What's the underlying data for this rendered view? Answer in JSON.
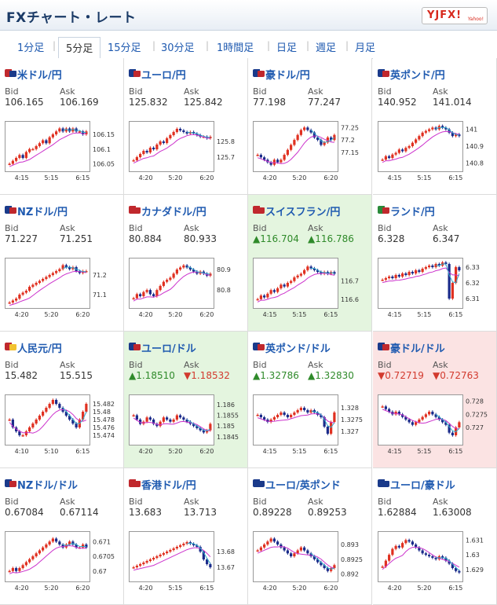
{
  "header": {
    "title": "FXチャート・レート",
    "logo_text": "YJFX!",
    "logo_sub": "Yahoo!"
  },
  "tabs": [
    "1分足",
    "5分足",
    "15分足",
    "30分足",
    "1時間足",
    "日足",
    "週足",
    "月足"
  ],
  "active_tab": 1,
  "labels": {
    "bid": "Bid",
    "ask": "Ask"
  },
  "colors": {
    "accent": "#1f5ab0",
    "up_candle": "#e03020",
    "down_candle": "#1a2a8a",
    "ma_line": "#cc33cc",
    "signal_line": "#33aacc",
    "up_text": "#2f8a2a",
    "down_text": "#d23a2e",
    "up_bg": "#e4f5df",
    "down_bg": "#fbe3e3"
  },
  "pairs": [
    {
      "name": "米ドル/円",
      "flag": [
        "#c0282d",
        "#1a3a8a"
      ],
      "bid": "106.165",
      "ask": "106.169",
      "trend": "",
      "bg": "",
      "chart": {
        "yticks": [
          "106.15",
          "106.1",
          "106.05"
        ],
        "xticks": [
          "4:15",
          "5:15",
          "6:15"
        ],
        "ylim": [
          106.03,
          106.19
        ],
        "closes": [
          106.05,
          106.06,
          106.07,
          106.08,
          106.07,
          106.09,
          106.1,
          106.1,
          106.11,
          106.12,
          106.13,
          106.12,
          106.14,
          106.15,
          106.16,
          106.17,
          106.16,
          106.17,
          106.16,
          106.17,
          106.16,
          106.16,
          106.15,
          106.16
        ]
      }
    },
    {
      "name": "ユーロ/円",
      "flag": [
        "#1a3a8a",
        "#c0282d"
      ],
      "bid": "125.832",
      "ask": "125.842",
      "trend": "",
      "bg": "",
      "chart": {
        "yticks": [
          "125.8",
          "125.7"
        ],
        "xticks": [
          "4:20",
          "5:20",
          "6:20"
        ],
        "ylim": [
          125.62,
          125.92
        ],
        "closes": [
          125.68,
          125.7,
          125.72,
          125.74,
          125.73,
          125.76,
          125.75,
          125.78,
          125.8,
          125.79,
          125.82,
          125.84,
          125.86,
          125.88,
          125.87,
          125.86,
          125.85,
          125.86,
          125.85,
          125.84,
          125.83,
          125.83,
          125.82,
          125.83
        ]
      }
    },
    {
      "name": "豪ドル/円",
      "flag": [
        "#1a3a8a",
        "#c0282d"
      ],
      "bid": "77.198",
      "ask": "77.247",
      "trend": "",
      "bg": "",
      "chart": {
        "yticks": [
          "77.25",
          "77.2",
          "77.15"
        ],
        "xticks": [
          "4:20",
          "5:20",
          "6:20"
        ],
        "ylim": [
          77.08,
          77.27
        ],
        "closes": [
          77.14,
          77.13,
          77.12,
          77.11,
          77.1,
          77.12,
          77.11,
          77.12,
          77.14,
          77.16,
          77.18,
          77.2,
          77.22,
          77.24,
          77.25,
          77.24,
          77.23,
          77.21,
          77.2,
          77.18,
          77.19,
          77.21,
          77.2,
          77.22
        ]
      }
    },
    {
      "name": "英ポンド/円",
      "flag": [
        "#1a3a8a",
        "#c0282d"
      ],
      "bid": "140.952",
      "ask": "141.014",
      "trend": "",
      "bg": "",
      "chart": {
        "yticks": [
          "141",
          "140.9",
          "140.8"
        ],
        "xticks": [
          "4:15",
          "5:15",
          "6:15"
        ],
        "ylim": [
          140.76,
          141.04
        ],
        "closes": [
          140.82,
          140.84,
          140.83,
          140.85,
          140.86,
          140.88,
          140.87,
          140.89,
          140.9,
          140.92,
          140.94,
          140.96,
          140.98,
          140.99,
          141.0,
          141.01,
          141.0,
          141.02,
          141.01,
          141.0,
          140.98,
          140.96,
          140.97,
          140.96
        ]
      }
    },
    {
      "name": "NZドル/円",
      "flag": [
        "#1a3a8a",
        "#c0282d"
      ],
      "bid": "71.227",
      "ask": "71.251",
      "trend": "",
      "bg": "",
      "chart": {
        "yticks": [
          "71.2",
          "71.1"
        ],
        "xticks": [
          "4:20",
          "5:20",
          "6:20"
        ],
        "ylim": [
          71.04,
          71.28
        ],
        "closes": [
          71.06,
          71.07,
          71.08,
          71.1,
          71.11,
          71.12,
          71.14,
          71.15,
          71.16,
          71.17,
          71.18,
          71.19,
          71.2,
          71.21,
          71.22,
          71.23,
          71.25,
          71.24,
          71.23,
          71.24,
          71.22,
          71.21,
          71.22,
          71.22
        ]
      }
    },
    {
      "name": "カナダドル/円",
      "flag": [
        "#c0282d",
        "#c0282d"
      ],
      "bid": "80.884",
      "ask": "80.933",
      "trend": "",
      "bg": "",
      "chart": {
        "yticks": [
          "80.9",
          "80.8"
        ],
        "xticks": [
          "4:20",
          "5:20",
          "6:20"
        ],
        "ylim": [
          80.72,
          80.95
        ],
        "closes": [
          80.76,
          80.78,
          80.77,
          80.79,
          80.8,
          80.78,
          80.77,
          80.8,
          80.82,
          80.84,
          80.85,
          80.86,
          80.88,
          80.9,
          80.91,
          80.92,
          80.91,
          80.9,
          80.89,
          80.88,
          80.89,
          80.88,
          80.87,
          80.88
        ]
      }
    },
    {
      "name": "スイスフラン/円",
      "flag": [
        "#c0282d",
        "#c0282d"
      ],
      "bid": "116.704",
      "ask": "116.786",
      "trend": "up",
      "bg": "up",
      "chart": {
        "yticks": [
          "116.7",
          "116.6"
        ],
        "xticks": [
          "4:15",
          "5:15",
          "6:15"
        ],
        "ylim": [
          116.56,
          116.82
        ],
        "closes": [
          116.6,
          116.62,
          116.61,
          116.63,
          116.65,
          116.64,
          116.66,
          116.68,
          116.67,
          116.69,
          116.7,
          116.72,
          116.73,
          116.74,
          116.76,
          116.78,
          116.77,
          116.76,
          116.75,
          116.74,
          116.75,
          116.74,
          116.75,
          116.74
        ]
      }
    },
    {
      "name": "ランド/円",
      "flag": [
        "#2a8a3a",
        "#c0282d"
      ],
      "bid": "6.328",
      "ask": "6.347",
      "trend": "",
      "bg": "",
      "chart": {
        "yticks": [
          "6.33",
          "6.32",
          "6.31"
        ],
        "xticks": [
          "4:15",
          "5:15",
          "6:15"
        ],
        "ylim": [
          6.305,
          6.335
        ],
        "closes": [
          6.322,
          6.323,
          6.324,
          6.323,
          6.325,
          6.324,
          6.326,
          6.325,
          6.327,
          6.326,
          6.328,
          6.327,
          6.329,
          6.33,
          6.331,
          6.33,
          6.332,
          6.331,
          6.333,
          6.332,
          6.31,
          6.32,
          6.33,
          6.328
        ]
      }
    },
    {
      "name": "人民元/円",
      "flag": [
        "#c0282d",
        "#f2c230"
      ],
      "bid": "15.482",
      "ask": "15.515",
      "trend": "",
      "bg": "",
      "chart": {
        "yticks": [
          "15.482",
          "15.48",
          "15.478",
          "15.476",
          "15.474"
        ],
        "xticks": [
          "4:10",
          "5:10",
          "6:15"
        ],
        "ylim": [
          15.472,
          15.484
        ],
        "closes": [
          15.478,
          15.476,
          15.475,
          15.474,
          15.474,
          15.475,
          15.476,
          15.477,
          15.478,
          15.479,
          15.48,
          15.481,
          15.482,
          15.483,
          15.482,
          15.481,
          15.48,
          15.479,
          15.478,
          15.477,
          15.476,
          15.478,
          15.48,
          15.482
        ]
      }
    },
    {
      "name": "ユーロ/ドル",
      "flag": [
        "#1a3a8a",
        "#c0282d"
      ],
      "bid": "1.18510",
      "ask": "1.18532",
      "trend": "mixed",
      "bg": "up",
      "chart": {
        "yticks": [
          "1.186",
          "1.1855",
          "1.185",
          "1.1845"
        ],
        "xticks": [
          "4:20",
          "5:20",
          "6:20"
        ],
        "ylim": [
          1.1842,
          1.1864
        ],
        "closes": [
          1.1855,
          1.1853,
          1.1851,
          1.1852,
          1.1854,
          1.1853,
          1.1851,
          1.185,
          1.1852,
          1.1854,
          1.1853,
          1.1852,
          1.1853,
          1.1855,
          1.1854,
          1.1853,
          1.1852,
          1.1851,
          1.185,
          1.1849,
          1.1848,
          1.1847,
          1.1848,
          1.1851
        ]
      }
    },
    {
      "name": "英ポンド/ドル",
      "flag": [
        "#1a3a8a",
        "#c0282d"
      ],
      "bid": "1.32786",
      "ask": "1.32830",
      "trend": "up",
      "bg": "",
      "chart": {
        "yticks": [
          "1.328",
          "1.3275",
          "1.327"
        ],
        "xticks": [
          "4:15",
          "5:15",
          "6:15"
        ],
        "ylim": [
          1.3265,
          1.3285
        ],
        "closes": [
          1.3277,
          1.3276,
          1.3275,
          1.3274,
          1.3275,
          1.3276,
          1.3277,
          1.3278,
          1.3277,
          1.3276,
          1.3277,
          1.3278,
          1.3279,
          1.328,
          1.3279,
          1.3278,
          1.3279,
          1.3278,
          1.3277,
          1.3276,
          1.3272,
          1.3269,
          1.3274,
          1.3278
        ]
      }
    },
    {
      "name": "豪ドル/ドル",
      "flag": [
        "#1a3a8a",
        "#c0282d"
      ],
      "bid": "0.72719",
      "ask": "0.72763",
      "trend": "down",
      "bg": "down",
      "chart": {
        "yticks": [
          "0.728",
          "0.7275",
          "0.727"
        ],
        "xticks": [
          "4:15",
          "5:15",
          "6:15"
        ],
        "ylim": [
          0.7264,
          0.7282
        ],
        "closes": [
          0.7278,
          0.7277,
          0.7276,
          0.7275,
          0.7276,
          0.7275,
          0.7274,
          0.7273,
          0.7272,
          0.7271,
          0.7272,
          0.7273,
          0.7274,
          0.7275,
          0.7276,
          0.7275,
          0.7274,
          0.7273,
          0.7272,
          0.7271,
          0.7268,
          0.7267,
          0.727,
          0.7272
        ]
      }
    },
    {
      "name": "NZドル/ドル",
      "flag": [
        "#1a3a8a",
        "#c0282d"
      ],
      "bid": "0.67084",
      "ask": "0.67114",
      "trend": "",
      "bg": "",
      "chart": {
        "yticks": [
          "0.671",
          "0.6705",
          "0.67"
        ],
        "xticks": [
          "4:20",
          "5:20",
          "6:20"
        ],
        "ylim": [
          0.6697,
          0.6713
        ],
        "closes": [
          0.67,
          0.6701,
          0.67,
          0.6701,
          0.6702,
          0.6703,
          0.6704,
          0.6705,
          0.6706,
          0.6707,
          0.6708,
          0.6709,
          0.671,
          0.6711,
          0.671,
          0.6709,
          0.6708,
          0.6709,
          0.671,
          0.6709,
          0.6708,
          0.6708,
          0.6709,
          0.6708
        ]
      }
    },
    {
      "name": "香港ドル/円",
      "flag": [
        "#c0282d",
        "#c0282d"
      ],
      "bid": "13.683",
      "ask": "13.713",
      "trend": "",
      "bg": "",
      "chart": {
        "yticks": [
          "13.68",
          "13.67"
        ],
        "xticks": [
          "4:20",
          "5:15",
          "6:15"
        ],
        "ylim": [
          13.662,
          13.692
        ],
        "closes": [
          13.67,
          13.671,
          13.672,
          13.673,
          13.674,
          13.675,
          13.676,
          13.677,
          13.678,
          13.679,
          13.68,
          13.681,
          13.682,
          13.683,
          13.684,
          13.685,
          13.686,
          13.685,
          13.684,
          13.683,
          13.68,
          13.675,
          13.672,
          13.67
        ]
      }
    },
    {
      "name": "ユーロ/英ポンド",
      "flag": [
        "#1a3a8a",
        "#1a3a8a"
      ],
      "bid": "0.89228",
      "ask": "0.89253",
      "trend": "",
      "bg": "",
      "chart": {
        "yticks": [
          "0.893",
          "0.8925",
          "0.892"
        ],
        "xticks": [
          "4:20",
          "5:20",
          "6:20"
        ],
        "ylim": [
          0.8918,
          0.8934
        ],
        "closes": [
          0.8928,
          0.8929,
          0.893,
          0.8931,
          0.8932,
          0.8931,
          0.893,
          0.8929,
          0.8928,
          0.8927,
          0.8926,
          0.8927,
          0.8928,
          0.8929,
          0.8928,
          0.8927,
          0.8926,
          0.8925,
          0.8924,
          0.8923,
          0.8922,
          0.8921,
          0.8922,
          0.8923
        ]
      }
    },
    {
      "name": "ユーロ/豪ドル",
      "flag": [
        "#1a3a8a",
        "#1a3a8a"
      ],
      "bid": "1.62884",
      "ask": "1.63008",
      "trend": "",
      "bg": "",
      "chart": {
        "yticks": [
          "1.631",
          "1.63",
          "1.629"
        ],
        "xticks": [
          "4:20",
          "5:20",
          "6:15"
        ],
        "ylim": [
          1.6283,
          1.6315
        ],
        "closes": [
          1.6292,
          1.6296,
          1.63,
          1.6304,
          1.6306,
          1.6305,
          1.6308,
          1.631,
          1.6309,
          1.6307,
          1.6305,
          1.6303,
          1.6301,
          1.63,
          1.6299,
          1.6298,
          1.6297,
          1.6299,
          1.6298,
          1.6296,
          1.6294,
          1.6291,
          1.6289,
          1.6288
        ]
      }
    }
  ]
}
